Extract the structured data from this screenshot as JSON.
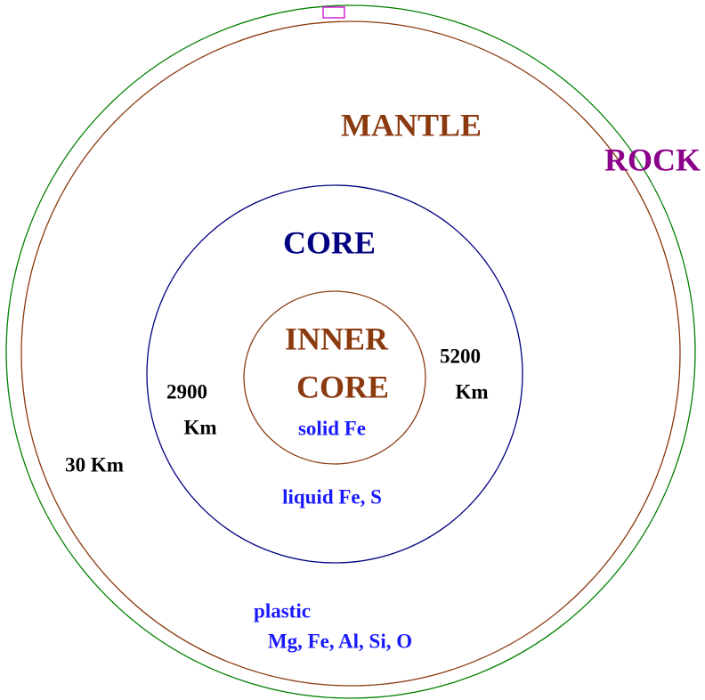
{
  "layers": {
    "crust": "ROCK",
    "mantle": "MANTLE",
    "outer_core": "CORE",
    "inner_core": [
      "INNER",
      "CORE"
    ]
  },
  "compositions": {
    "inner_core": "solid Fe",
    "outer_core": "liquid Fe, S",
    "mantle": [
      "plastic",
      "Mg, Fe, Al, Si, O"
    ]
  },
  "depths": {
    "crust": "30 Km",
    "mantle": [
      "2900",
      "Km"
    ],
    "outer_core": [
      "5200",
      "Km"
    ]
  }
}
